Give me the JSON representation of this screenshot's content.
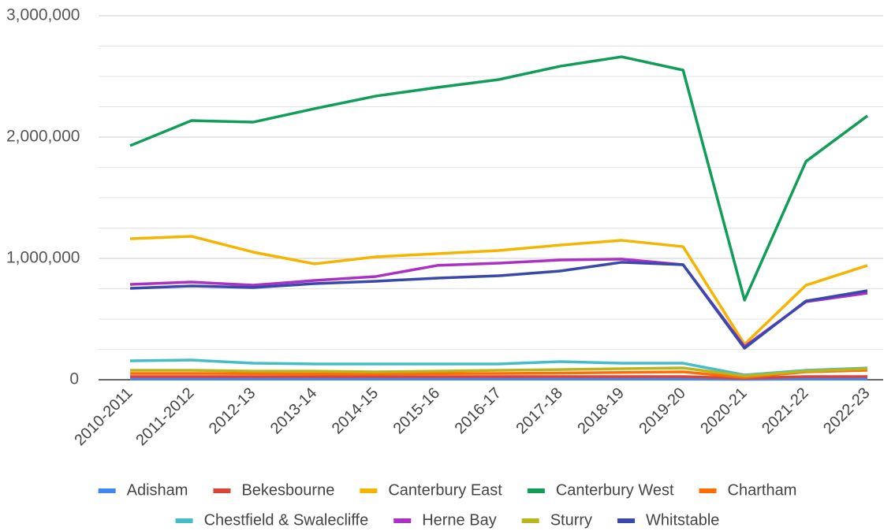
{
  "chart_data": {
    "type": "line",
    "categories": [
      "2010-2011",
      "2011-2012",
      "2012-13",
      "2013-14",
      "2014-15",
      "2015-16",
      "2016-17",
      "2017-18",
      "2018-19",
      "2019-20",
      "2020-21",
      "2021-22",
      "2022-23"
    ],
    "ylim": [
      0,
      3000000
    ],
    "yticks": [
      0,
      {
        "value": 1000000,
        "label": "1,000,000"
      },
      {
        "value": 2000000,
        "label": "2,000,000"
      },
      {
        "value": 3000000,
        "label": "3,000,000"
      }
    ],
    "minor_yticks": [
      250000,
      500000,
      750000,
      1250000,
      1500000,
      1750000,
      2250000,
      2500000,
      2750000
    ],
    "grid": true,
    "legend": "bottom",
    "series": [
      {
        "name": "Adisham",
        "color": "#4285f4",
        "values": [
          6000,
          6000,
          6000,
          6000,
          6000,
          6000,
          6000,
          6000,
          6000,
          6000,
          3000,
          6000,
          6000
        ]
      },
      {
        "name": "Bekesbourne",
        "color": "#db4437",
        "values": [
          26000,
          26000,
          26000,
          26000,
          26000,
          26000,
          26000,
          26000,
          26000,
          26000,
          13000,
          26000,
          26000
        ]
      },
      {
        "name": "Canterbury East",
        "color": "#f4b400",
        "values": [
          1162000,
          1182000,
          1052000,
          955000,
          1013000,
          1039000,
          1065000,
          1110000,
          1149000,
          1097000,
          292000,
          779000,
          942000
        ]
      },
      {
        "name": "Canterbury West",
        "color": "#0f9d58",
        "values": [
          1929000,
          2136000,
          2123000,
          2234000,
          2338000,
          2409000,
          2474000,
          2584000,
          2662000,
          2552000,
          656000,
          1799000,
          2175000
        ]
      },
      {
        "name": "Chartham",
        "color": "#ff6d01",
        "values": [
          52000,
          52000,
          50000,
          48000,
          48000,
          50000,
          52000,
          55000,
          60000,
          65000,
          19000,
          65000,
          78000
        ]
      },
      {
        "name": "Chestfield & Swalecliffe",
        "color": "#46bdc6",
        "values": [
          156000,
          162000,
          136000,
          130000,
          130000,
          130000,
          130000,
          149000,
          136000,
          136000,
          39000,
          78000,
          97000
        ]
      },
      {
        "name": "Herne Bay",
        "color": "#ab30c4",
        "values": [
          786000,
          805000,
          779000,
          818000,
          851000,
          942000,
          961000,
          987000,
          994000,
          948000,
          273000,
          643000,
          714000
        ]
      },
      {
        "name": "Sturry",
        "color": "#b9b51f",
        "values": [
          78000,
          78000,
          71000,
          71000,
          65000,
          71000,
          78000,
          84000,
          91000,
          97000,
          32000,
          71000,
          91000
        ]
      },
      {
        "name": "Whitstable",
        "color": "#3949ab",
        "values": [
          753000,
          773000,
          760000,
          792000,
          812000,
          838000,
          857000,
          896000,
          968000,
          948000,
          260000,
          649000,
          734000
        ]
      }
    ]
  }
}
